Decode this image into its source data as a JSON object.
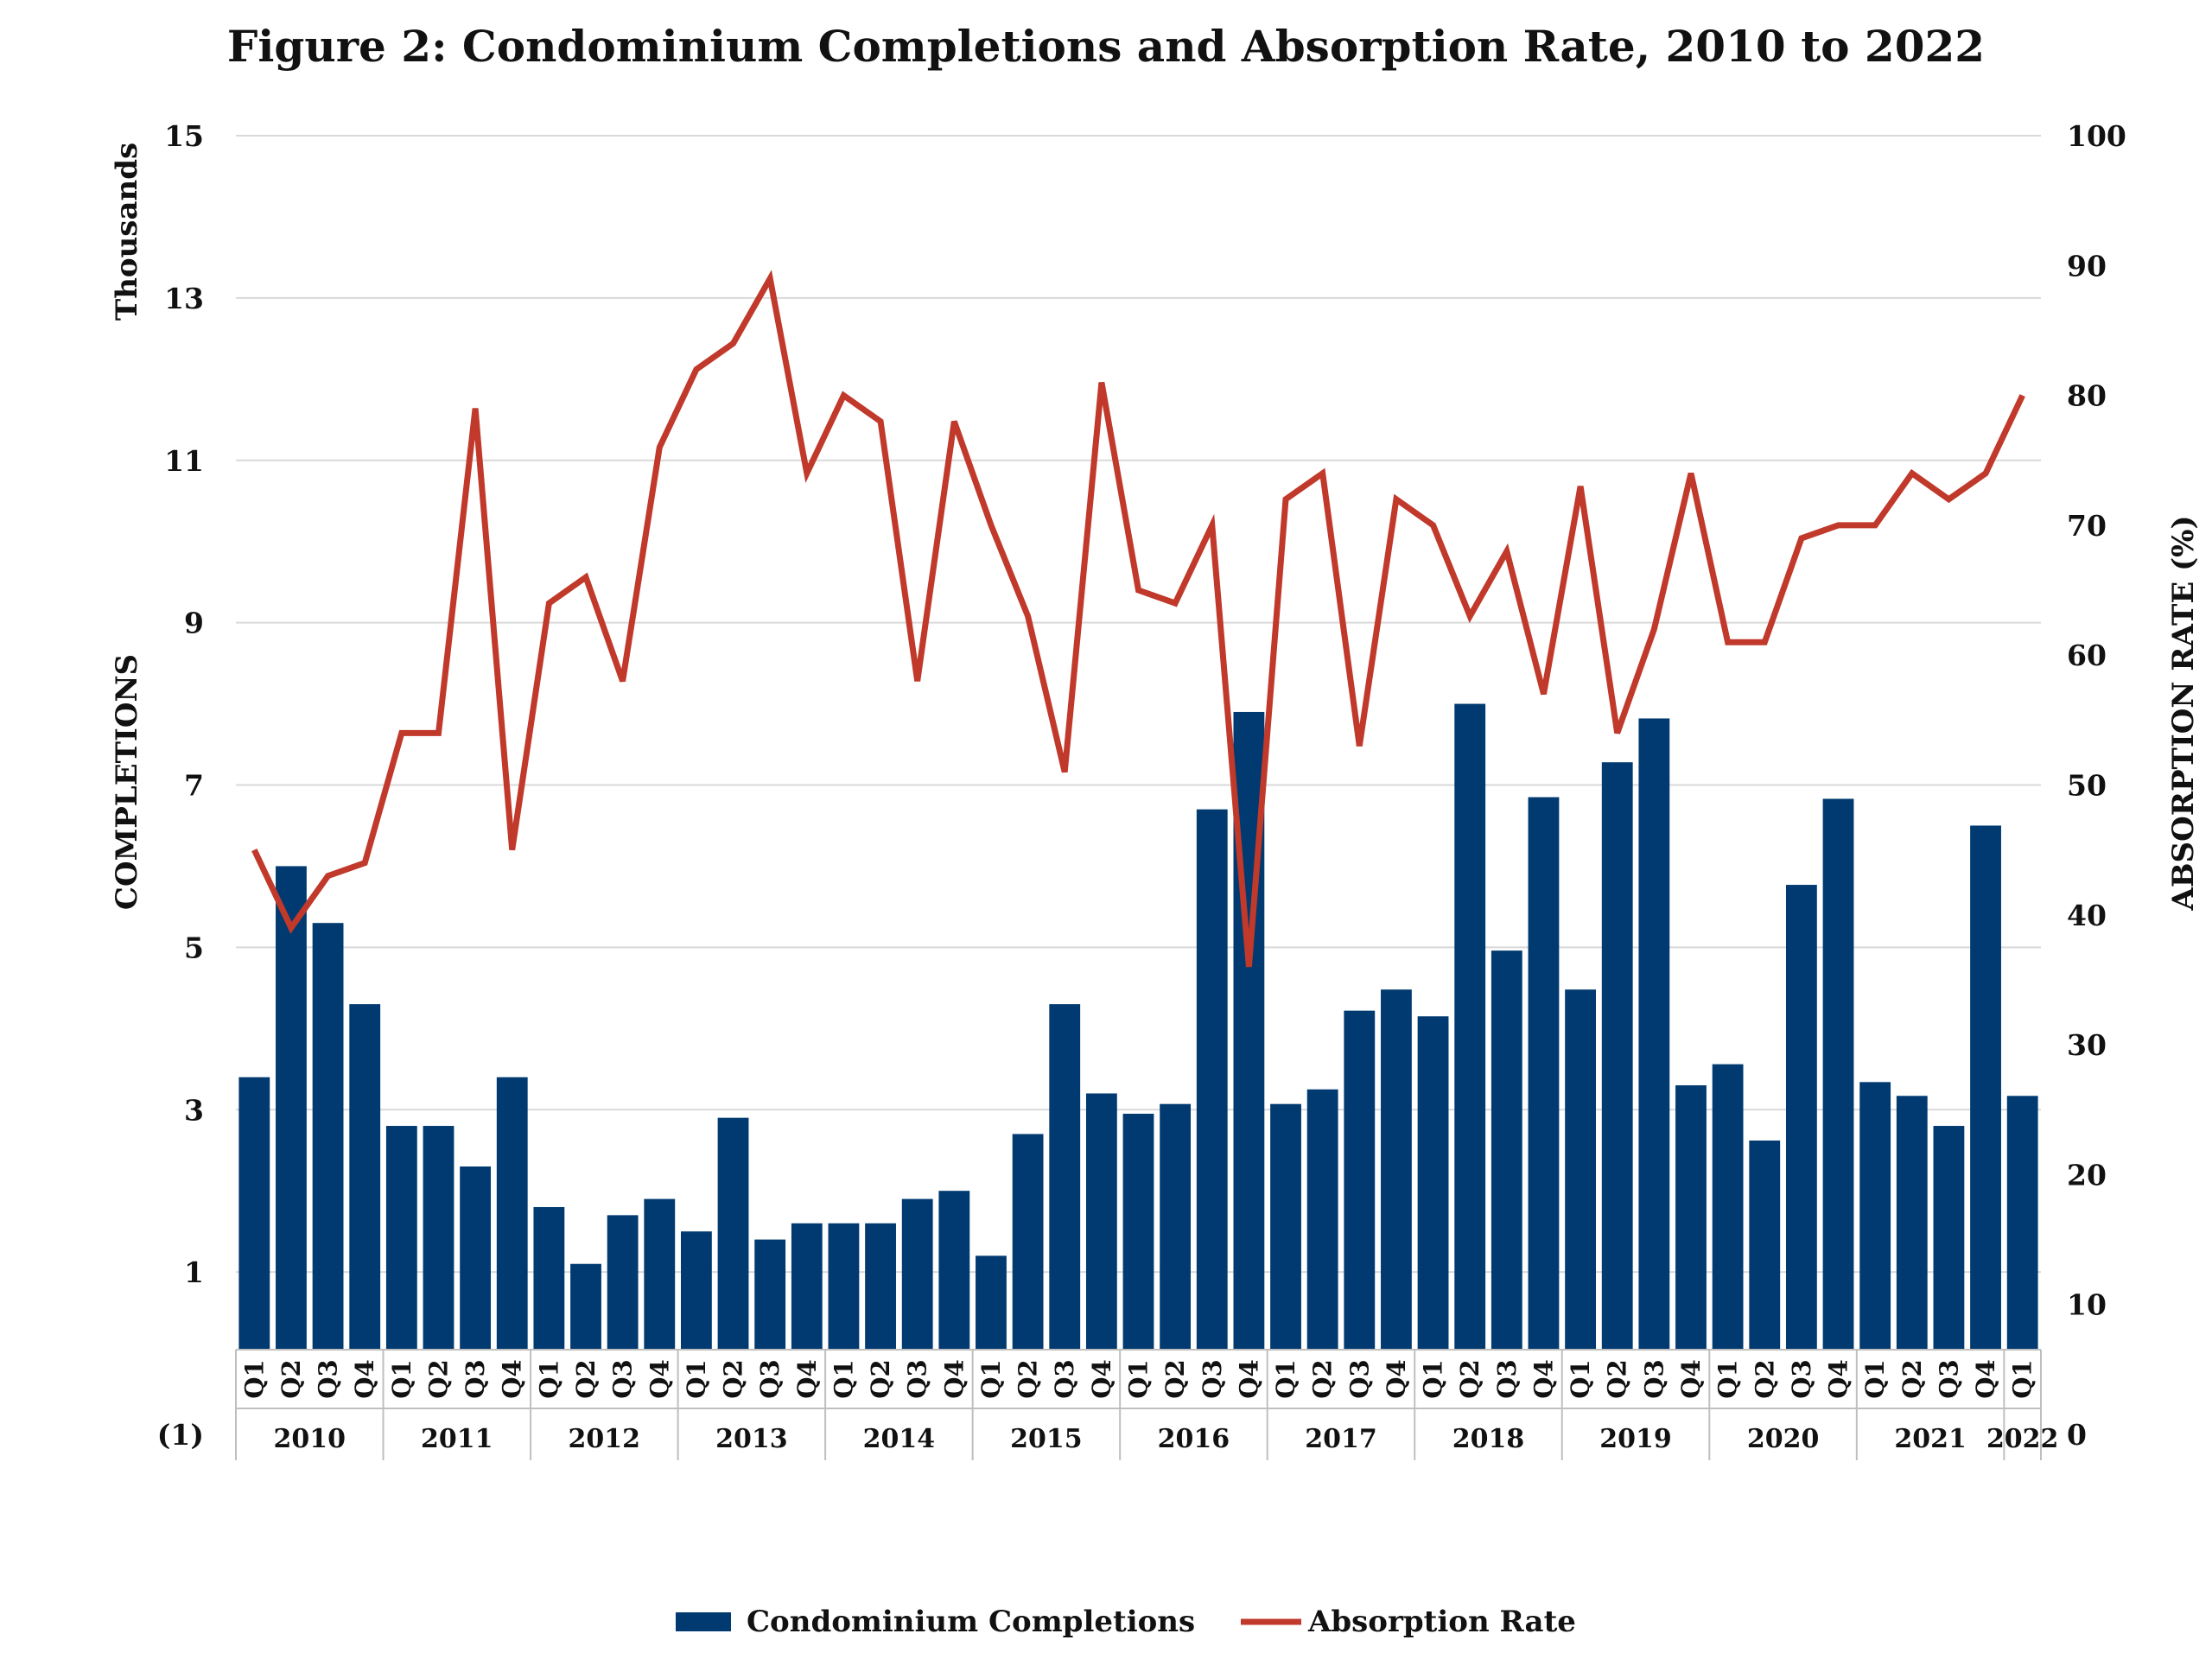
{
  "chart_data": {
    "type": "bar+line",
    "title": "Figure 2: Condominium Completions and Absorption Rate, 2010 to 2022",
    "left_axis": {
      "label": "COMPLETIONS",
      "unit_label": "Thousands",
      "range": [
        -1,
        15
      ],
      "tick_values": [
        1,
        3,
        5,
        7,
        9,
        11,
        13,
        15
      ],
      "bottom_label": "(1)"
    },
    "right_axis": {
      "label": "ABSORPTION RATE (%)",
      "range": [
        0,
        100
      ],
      "tick_values": [
        0,
        10,
        20,
        30,
        40,
        50,
        60,
        70,
        80,
        90,
        100
      ]
    },
    "grid": true,
    "legend_position": "bottom",
    "colors": {
      "bars": "#003a70",
      "line": "#c0392b",
      "grid": "#d9d9d9"
    },
    "years": [
      {
        "label": "2010",
        "quarters": 4
      },
      {
        "label": "2011",
        "quarters": 4
      },
      {
        "label": "2012",
        "quarters": 4
      },
      {
        "label": "2013",
        "quarters": 4
      },
      {
        "label": "2014",
        "quarters": 4
      },
      {
        "label": "2015",
        "quarters": 4
      },
      {
        "label": "2016",
        "quarters": 4
      },
      {
        "label": "2017",
        "quarters": 4
      },
      {
        "label": "2018",
        "quarters": 4
      },
      {
        "label": "2019",
        "quarters": 4
      },
      {
        "label": "2020",
        "quarters": 4
      },
      {
        "label": "2021",
        "quarters": 4
      },
      {
        "label": "2022",
        "quarters": 1
      }
    ],
    "categories": [
      "Q1",
      "Q2",
      "Q3",
      "Q4",
      "Q1",
      "Q2",
      "Q3",
      "Q4",
      "Q1",
      "Q2",
      "Q3",
      "Q4",
      "Q1",
      "Q2",
      "Q3",
      "Q4",
      "Q1",
      "Q2",
      "Q3",
      "Q4",
      "Q1",
      "Q2",
      "Q3",
      "Q4",
      "Q1",
      "Q2",
      "Q3",
      "Q4",
      "Q1",
      "Q2",
      "Q3",
      "Q4",
      "Q1",
      "Q2",
      "Q3",
      "Q4",
      "Q1",
      "Q2",
      "Q3",
      "Q4",
      "Q1",
      "Q2",
      "Q3",
      "Q4",
      "Q1",
      "Q2",
      "Q3",
      "Q4",
      "Q1"
    ],
    "series": [
      {
        "name": "Condominium Completions",
        "type": "bar",
        "axis": "left",
        "values": [
          3.4,
          6.0,
          5.3,
          4.3,
          2.8,
          2.8,
          2.3,
          3.4,
          1.8,
          1.1,
          1.7,
          1.9,
          1.5,
          2.9,
          1.4,
          1.6,
          1.6,
          1.6,
          1.9,
          2.0,
          1.2,
          2.7,
          4.3,
          3.2,
          2.95,
          3.07,
          6.7,
          7.9,
          3.07,
          3.25,
          4.22,
          4.48,
          4.15,
          8.0,
          4.96,
          6.85,
          4.48,
          7.28,
          7.82,
          3.3,
          3.56,
          2.62,
          5.77,
          6.83,
          3.34,
          3.17,
          2.8,
          6.5,
          3.17
        ]
      },
      {
        "name": "Absorption Rate",
        "type": "line",
        "axis": "right",
        "values": [
          45,
          39,
          43,
          44,
          54,
          54,
          79,
          45,
          64,
          66,
          58,
          76,
          82,
          84,
          89,
          74,
          80,
          78,
          58,
          78,
          70,
          63,
          51,
          81,
          65,
          64,
          70,
          36,
          72,
          74,
          53,
          72,
          70,
          63,
          68,
          57,
          73,
          54,
          62,
          74,
          61,
          61,
          69,
          70,
          70,
          74,
          72,
          74,
          80
        ]
      }
    ]
  }
}
